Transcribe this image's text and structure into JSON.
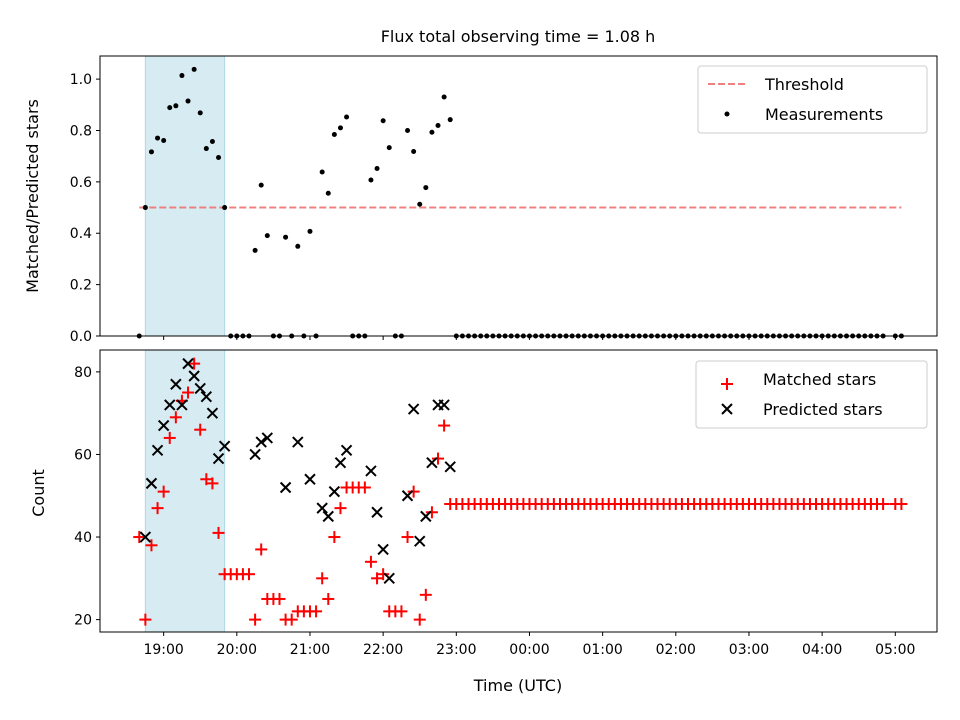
{
  "chart_data": [
    {
      "type": "scatter",
      "title": "Flux total observing time = 1.08 h",
      "xlabel": "",
      "ylabel": "Matched/Predicted stars",
      "ylim": [
        0,
        1.09
      ],
      "yticks": [
        "0.0",
        "0.2",
        "0.4",
        "0.6",
        "0.8",
        "1.0"
      ],
      "ytick_values": [
        0,
        0.2,
        0.4,
        0.6,
        0.8,
        1.0
      ],
      "threshold": {
        "label": "Threshold",
        "value": 0.5,
        "color": "#f08080"
      },
      "measurements": {
        "label": "Measurements",
        "color": "#000000",
        "derived_from": "matched/predicted (0 where predicted missing)"
      },
      "highlight_span": [
        "18:45",
        "19:50"
      ],
      "highlight_color": "#add8e6",
      "legend_position": "top-right"
    },
    {
      "type": "scatter",
      "xlabel": "Time (UTC)",
      "ylabel": "Count",
      "ylim": [
        17,
        85.3
      ],
      "yticks": [
        "20",
        "40",
        "60",
        "80"
      ],
      "ytick_values": [
        20,
        40,
        60,
        80
      ],
      "legend_position": "top-right",
      "series": [
        {
          "name": "Matched stars",
          "marker": "+",
          "color": "#ff0000"
        },
        {
          "name": "Predicted stars",
          "marker": "x",
          "color": "#000000"
        }
      ]
    }
  ],
  "x_axis": {
    "ticks": [
      "19:00",
      "20:00",
      "21:00",
      "22:00",
      "23:00",
      "00:00",
      "01:00",
      "02:00",
      "03:00",
      "04:00",
      "05:00"
    ],
    "tick_hours": [
      19,
      20,
      21,
      22,
      23,
      24,
      25,
      26,
      27,
      28,
      29
    ],
    "xlim_hours": [
      18.13,
      29.57
    ]
  },
  "time_start": "18:40",
  "time_step_minutes": 5,
  "matched": [
    40,
    20,
    38,
    47,
    51,
    64,
    69,
    73,
    75,
    82,
    66,
    54,
    53,
    41,
    31,
    31,
    31,
    31,
    31,
    20,
    37,
    25,
    25,
    25,
    20,
    20,
    22,
    22,
    22,
    22,
    30,
    25,
    40,
    47,
    52,
    52,
    52,
    52,
    34,
    30,
    31,
    22,
    22,
    22,
    40,
    51,
    20,
    26,
    46,
    59,
    67,
    48,
    48,
    48,
    48,
    48,
    48,
    48,
    48,
    48,
    48,
    48,
    48,
    48,
    48,
    48,
    48,
    48,
    48,
    48,
    48,
    48,
    48,
    48,
    48,
    48,
    48,
    48,
    48,
    48,
    48,
    48,
    48,
    48,
    48,
    48,
    48,
    48,
    48,
    48,
    48,
    48,
    48,
    48,
    48,
    48,
    48,
    48,
    48,
    48,
    48,
    48,
    48,
    48,
    48,
    48,
    48,
    48,
    48,
    48,
    48,
    48,
    48,
    48,
    48,
    48,
    48,
    48,
    48,
    48,
    48,
    48,
    48,
    null,
    48,
    48
  ],
  "predicted": [
    null,
    40,
    53,
    61,
    67,
    72,
    77,
    72,
    82,
    79,
    76,
    74,
    70,
    59,
    62,
    null,
    null,
    null,
    null,
    60,
    63,
    64,
    null,
    null,
    52,
    null,
    63,
    null,
    54,
    null,
    47,
    45,
    51,
    58,
    61,
    null,
    null,
    null,
    56,
    46,
    37,
    30,
    null,
    null,
    50,
    71,
    39,
    45,
    58,
    72,
    72,
    57
  ]
}
